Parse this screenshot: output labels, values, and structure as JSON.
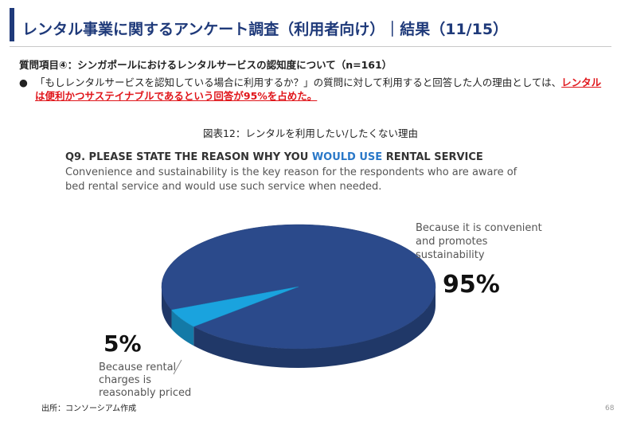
{
  "slide": {
    "title": "レンタル事業に関するアンケート調査（利用者向け）｜結果（11/15）",
    "question": "質問項目④：シンガポールにおけるレンタルサービスの認知度について（n=161）",
    "bullet_text": "「もしレンタルサービスを認知している場合に利用するか？」の質問に対して利用すると回答した人の理由としては、",
    "bullet_highlight": "レンタルは便利かつサステイナブルであるという回答が95%を占めた。",
    "source": "出所：コンソーシアム作成",
    "page_number": "68"
  },
  "chart_data": {
    "type": "pie",
    "caption": "図表12：レンタルを利用したい/したくない理由",
    "title_start": "Q9. PLEASE STATE THE REASON WHY YOU",
    "title_highlight": "WOULD USE",
    "title_end": "RENTAL SERVICE",
    "subtitle": "Convenience and sustainability is the key reason for the respondents who are aware of bed rental service and would use such service when needed.",
    "categories": [
      "Because it is convenient and promotes sustainability",
      "Because rental charges is reasonably priced"
    ],
    "values": [
      95,
      5
    ],
    "value_labels": [
      "95%",
      "5%"
    ],
    "colors": [
      "#2b4a8b",
      "#1aa3de"
    ]
  }
}
